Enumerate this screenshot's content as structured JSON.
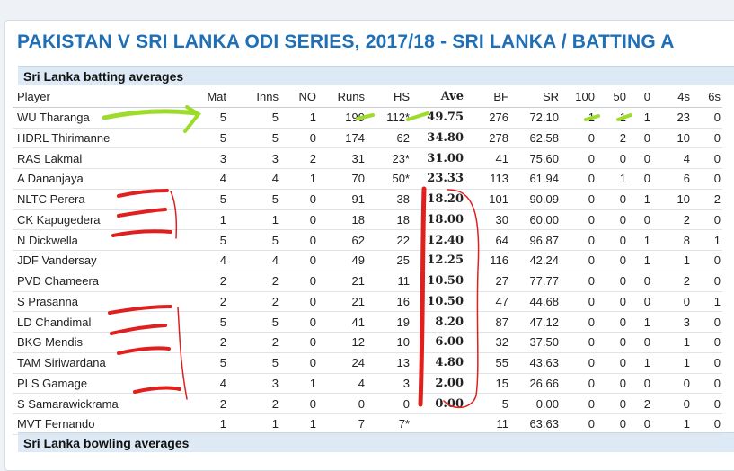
{
  "page": {
    "series_title": "PAKISTAN V SRI LANKA ODI SERIES, 2017/18 - SRI LANKA / BATTING A",
    "batting_heading": "Sri Lanka batting averages",
    "bowling_heading": "Sri Lanka bowling averages"
  },
  "table": {
    "columns": [
      "Player",
      "Mat",
      "Inns",
      "NO",
      "Runs",
      "HS",
      "Ave",
      "BF",
      "SR",
      "100",
      "50",
      "0",
      "4s",
      "6s"
    ],
    "rows": [
      [
        "WU Tharanga",
        "5",
        "5",
        "1",
        "199",
        "112*",
        "49.75",
        "276",
        "72.10",
        "1",
        "1",
        "1",
        "23",
        "0"
      ],
      [
        "HDRL Thirimanne",
        "5",
        "5",
        "0",
        "174",
        "62",
        "34.80",
        "278",
        "62.58",
        "0",
        "2",
        "0",
        "10",
        "0"
      ],
      [
        "RAS Lakmal",
        "3",
        "3",
        "2",
        "31",
        "23*",
        "31.00",
        "41",
        "75.60",
        "0",
        "0",
        "0",
        "4",
        "0"
      ],
      [
        "A Dananjaya",
        "4",
        "4",
        "1",
        "70",
        "50*",
        "23.33",
        "113",
        "61.94",
        "0",
        "1",
        "0",
        "6",
        "0"
      ],
      [
        "NLTC Perera",
        "5",
        "5",
        "0",
        "91",
        "38",
        "18.20",
        "101",
        "90.09",
        "0",
        "0",
        "1",
        "10",
        "2"
      ],
      [
        "CK Kapugedera",
        "1",
        "1",
        "0",
        "18",
        "18",
        "18.00",
        "30",
        "60.00",
        "0",
        "0",
        "0",
        "2",
        "0"
      ],
      [
        "N Dickwella",
        "5",
        "5",
        "0",
        "62",
        "22",
        "12.40",
        "64",
        "96.87",
        "0",
        "0",
        "1",
        "8",
        "1"
      ],
      [
        "JDF Vandersay",
        "4",
        "4",
        "0",
        "49",
        "25",
        "12.25",
        "116",
        "42.24",
        "0",
        "0",
        "1",
        "1",
        "0"
      ],
      [
        "PVD Chameera",
        "2",
        "2",
        "0",
        "21",
        "11",
        "10.50",
        "27",
        "77.77",
        "0",
        "0",
        "0",
        "2",
        "0"
      ],
      [
        "S Prasanna",
        "2",
        "2",
        "0",
        "21",
        "16",
        "10.50",
        "47",
        "44.68",
        "0",
        "0",
        "0",
        "0",
        "1"
      ],
      [
        "LD Chandimal",
        "5",
        "5",
        "0",
        "41",
        "19",
        "8.20",
        "87",
        "47.12",
        "0",
        "0",
        "1",
        "3",
        "0"
      ],
      [
        "BKG Mendis",
        "2",
        "2",
        "0",
        "12",
        "10",
        "6.00",
        "32",
        "37.50",
        "0",
        "0",
        "0",
        "1",
        "0"
      ],
      [
        "TAM Siriwardana",
        "5",
        "5",
        "0",
        "24",
        "13",
        "4.80",
        "55",
        "43.63",
        "0",
        "0",
        "1",
        "1",
        "0"
      ],
      [
        "PLS Gamage",
        "4",
        "3",
        "1",
        "4",
        "3",
        "2.00",
        "15",
        "26.66",
        "0",
        "0",
        "0",
        "0",
        "0"
      ],
      [
        "S Samarawickrama",
        "2",
        "2",
        "0",
        "0",
        "0",
        "0.00",
        "5",
        "0.00",
        "0",
        "0",
        "2",
        "0",
        "0"
      ],
      [
        "MVT Fernando",
        "1",
        "1",
        "1",
        "7",
        "7*",
        "",
        "11",
        "63.63",
        "0",
        "0",
        "0",
        "1",
        "0"
      ]
    ]
  },
  "colors": {
    "title": "#1f6fb6",
    "section_header_bg": "#ddeaf5",
    "highlight_green": "#9ddc2a",
    "markup_red": "#e01f1f"
  }
}
